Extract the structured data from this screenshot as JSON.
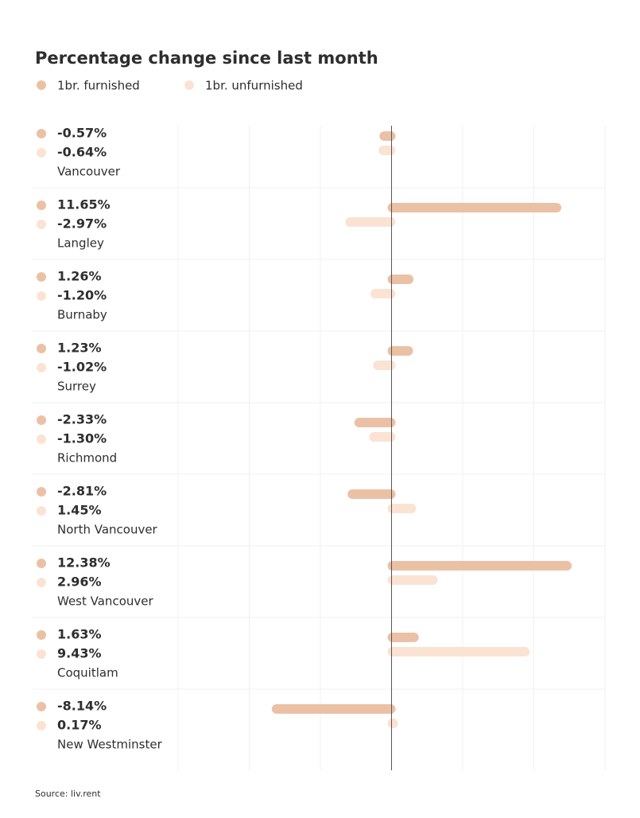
{
  "chart_data": {
    "type": "bar",
    "orientation": "horizontal",
    "title": "Percentage change since last month",
    "categories": [
      "Vancouver",
      "Langley",
      "Burnaby",
      "Surrey",
      "Richmond",
      "North Vancouver",
      "West Vancouver",
      "Coquitlam",
      "New Westminster"
    ],
    "series": [
      {
        "name": "1br. furnished",
        "color": "#ebc1a6",
        "values": [
          -0.57,
          11.65,
          1.26,
          1.23,
          -2.33,
          -2.81,
          12.38,
          1.63,
          -8.14
        ],
        "value_labels": [
          "-0.57%",
          "11.65%",
          "1.26%",
          "1.23%",
          "-2.33%",
          "-2.81%",
          "12.38%",
          "1.63%",
          "-8.14%"
        ]
      },
      {
        "name": "1br. unfurnished",
        "color": "#fbe3d4",
        "values": [
          -0.64,
          -2.97,
          -1.2,
          -1.02,
          -1.3,
          1.45,
          2.96,
          9.43,
          0.17
        ],
        "value_labels": [
          "-0.64%",
          "-2.97%",
          "-1.20%",
          "-1.02%",
          "-1.30%",
          "1.45%",
          "2.96%",
          "9.43%",
          "0.17%"
        ]
      }
    ],
    "xlim": [
      -15,
      15
    ],
    "xticks": [
      -15,
      -10,
      -5,
      0,
      5,
      10,
      15
    ],
    "grid": true,
    "source": "Source: liv.rent"
  }
}
